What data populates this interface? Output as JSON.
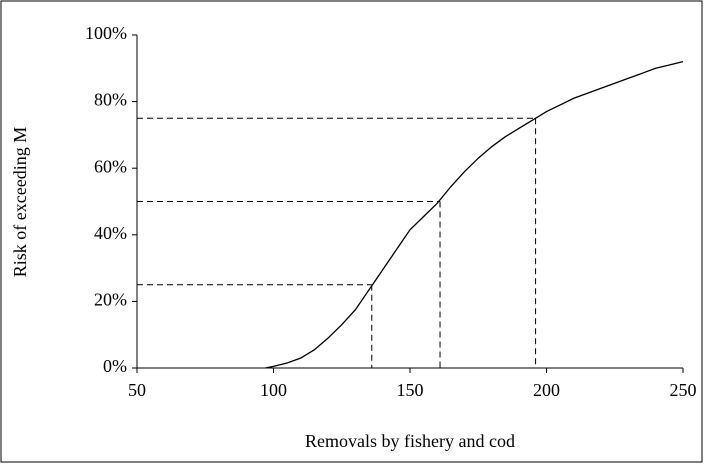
{
  "chart_data": {
    "type": "line",
    "x_label": "Removals by fishery and cod",
    "y_label": "Risk of exceeding M",
    "x": [
      97,
      100,
      105,
      110,
      115,
      120,
      125,
      130,
      135,
      140,
      145,
      150,
      155,
      160,
      165,
      170,
      175,
      180,
      185,
      190,
      195,
      200,
      205,
      210,
      215,
      220,
      225,
      230,
      235,
      240,
      245,
      250
    ],
    "series": [
      {
        "color": "#000000",
        "values": [
          0,
          0.5,
          1.5,
          3,
          5.5,
          9,
          13,
          17.5,
          23.5,
          29.5,
          35.5,
          41.5,
          45.5,
          49.5,
          54.5,
          59,
          63,
          66.5,
          69.5,
          72,
          74.5,
          77,
          79,
          81,
          82.5,
          84,
          85.5,
          87,
          88.5,
          90,
          91,
          92
        ]
      }
    ],
    "reference_lines": [
      {
        "x": 136,
        "y": 25
      },
      {
        "x": 161,
        "y": 50
      },
      {
        "x": 196,
        "y": 75
      }
    ],
    "xlim": [
      50,
      250
    ],
    "xticks": [
      50,
      100,
      150,
      200,
      250
    ],
    "ylim": [
      0,
      100
    ],
    "yticks": [
      {
        "value": 0,
        "label": "0%"
      },
      {
        "value": 20,
        "label": "20%"
      },
      {
        "value": 40,
        "label": "40%"
      },
      {
        "value": 60,
        "label": "60%"
      },
      {
        "value": 80,
        "label": "80%"
      },
      {
        "value": 100,
        "label": "100%"
      }
    ],
    "grid": false
  }
}
